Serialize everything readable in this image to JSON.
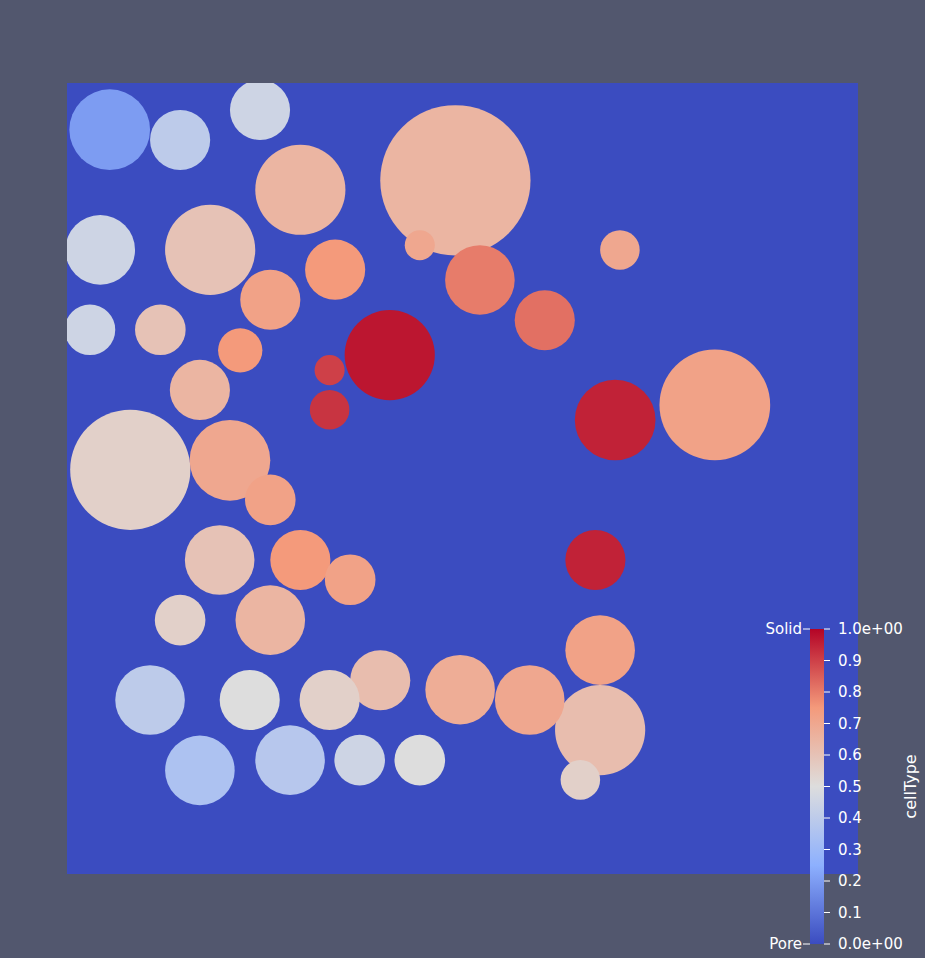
{
  "chart_data": {
    "type": "heatmap",
    "xlim": [
      0,
      1
    ],
    "ylim": [
      0,
      1
    ],
    "tick_labels": false,
    "grains": [
      {
        "x": 0.491,
        "y": 0.877,
        "r": 0.095,
        "value": 0.65
      },
      {
        "x": 0.295,
        "y": 0.865,
        "r": 0.057,
        "value": 0.65
      },
      {
        "x": 0.181,
        "y": 0.789,
        "r": 0.057,
        "value": 0.6
      },
      {
        "x": 0.408,
        "y": 0.656,
        "r": 0.057,
        "value": 0.97
      },
      {
        "x": 0.693,
        "y": 0.574,
        "r": 0.051,
        "value": 0.95
      },
      {
        "x": 0.668,
        "y": 0.397,
        "r": 0.038,
        "value": 0.95
      },
      {
        "x": 0.819,
        "y": 0.593,
        "r": 0.07,
        "value": 0.72
      },
      {
        "x": 0.522,
        "y": 0.751,
        "r": 0.044,
        "value": 0.8
      },
      {
        "x": 0.604,
        "y": 0.7,
        "r": 0.038,
        "value": 0.82
      },
      {
        "x": 0.699,
        "y": 0.789,
        "r": 0.025,
        "value": 0.7
      },
      {
        "x": 0.339,
        "y": 0.764,
        "r": 0.038,
        "value": 0.75
      },
      {
        "x": 0.257,
        "y": 0.726,
        "r": 0.038,
        "value": 0.72
      },
      {
        "x": 0.08,
        "y": 0.511,
        "r": 0.076,
        "value": 0.55
      },
      {
        "x": 0.206,
        "y": 0.523,
        "r": 0.051,
        "value": 0.7
      },
      {
        "x": 0.168,
        "y": 0.612,
        "r": 0.038,
        "value": 0.65
      },
      {
        "x": 0.219,
        "y": 0.662,
        "r": 0.028,
        "value": 0.75
      },
      {
        "x": 0.118,
        "y": 0.688,
        "r": 0.032,
        "value": 0.6
      },
      {
        "x": 0.042,
        "y": 0.789,
        "r": 0.044,
        "value": 0.45
      },
      {
        "x": 0.143,
        "y": 0.928,
        "r": 0.038,
        "value": 0.4
      },
      {
        "x": 0.054,
        "y": 0.941,
        "r": 0.051,
        "value": 0.2
      },
      {
        "x": 0.257,
        "y": 0.473,
        "r": 0.032,
        "value": 0.72
      },
      {
        "x": 0.295,
        "y": 0.397,
        "r": 0.038,
        "value": 0.75
      },
      {
        "x": 0.358,
        "y": 0.372,
        "r": 0.032,
        "value": 0.72
      },
      {
        "x": 0.193,
        "y": 0.397,
        "r": 0.044,
        "value": 0.6
      },
      {
        "x": 0.257,
        "y": 0.321,
        "r": 0.044,
        "value": 0.65
      },
      {
        "x": 0.143,
        "y": 0.321,
        "r": 0.032,
        "value": 0.55
      },
      {
        "x": 0.674,
        "y": 0.283,
        "r": 0.044,
        "value": 0.72
      },
      {
        "x": 0.674,
        "y": 0.182,
        "r": 0.057,
        "value": 0.62
      },
      {
        "x": 0.585,
        "y": 0.22,
        "r": 0.044,
        "value": 0.7
      },
      {
        "x": 0.497,
        "y": 0.233,
        "r": 0.044,
        "value": 0.68
      },
      {
        "x": 0.396,
        "y": 0.245,
        "r": 0.038,
        "value": 0.62
      },
      {
        "x": 0.332,
        "y": 0.22,
        "r": 0.038,
        "value": 0.55
      },
      {
        "x": 0.231,
        "y": 0.22,
        "r": 0.038,
        "value": 0.5
      },
      {
        "x": 0.105,
        "y": 0.22,
        "r": 0.044,
        "value": 0.4
      },
      {
        "x": 0.168,
        "y": 0.131,
        "r": 0.044,
        "value": 0.35
      },
      {
        "x": 0.282,
        "y": 0.144,
        "r": 0.044,
        "value": 0.38
      },
      {
        "x": 0.37,
        "y": 0.144,
        "r": 0.032,
        "value": 0.45
      },
      {
        "x": 0.446,
        "y": 0.144,
        "r": 0.032,
        "value": 0.5
      },
      {
        "x": 0.649,
        "y": 0.119,
        "r": 0.025,
        "value": 0.55
      },
      {
        "x": 0.332,
        "y": 0.587,
        "r": 0.025,
        "value": 0.92
      },
      {
        "x": 0.446,
        "y": 0.795,
        "r": 0.019,
        "value": 0.7
      },
      {
        "x": 0.332,
        "y": 0.637,
        "r": 0.019,
        "value": 0.9
      },
      {
        "x": 0.029,
        "y": 0.688,
        "r": 0.032,
        "value": 0.45
      },
      {
        "x": 0.244,
        "y": 0.966,
        "r": 0.038,
        "value": 0.45
      }
    ],
    "colorbar": {
      "title": "cellType",
      "range": [
        0,
        1
      ],
      "ticks": [
        {
          "value": 0,
          "label": "0.0e+00"
        },
        0.1,
        0.2,
        0.3,
        0.4,
        0.5,
        0.6,
        0.7,
        0.8,
        0.9,
        {
          "value": 1,
          "label": "1.0e+00"
        }
      ],
      "annotations": [
        {
          "value": 1,
          "label": "Solid"
        },
        {
          "value": 0,
          "label": "Pore"
        }
      ]
    }
  }
}
